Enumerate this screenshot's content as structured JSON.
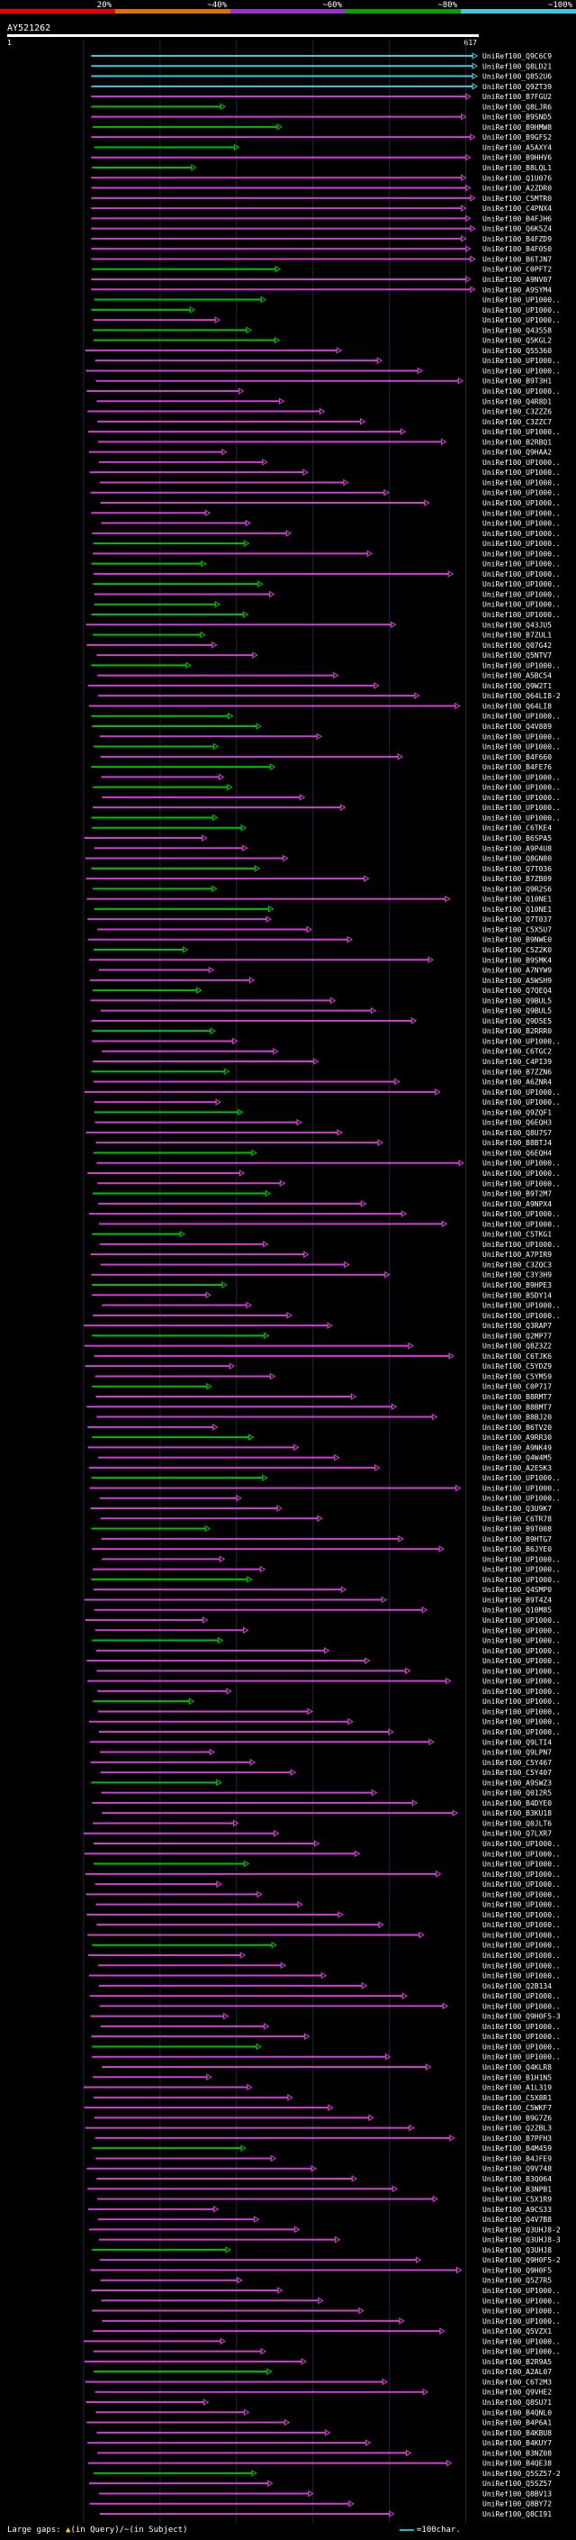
{
  "chart_data": {
    "type": "alignment-overview",
    "query_id": "AY521262",
    "query_start": "1",
    "query_end": "617",
    "query_length": 617,
    "identity_scale": [
      {
        "label": "20%",
        "color": "#e60000"
      },
      {
        "label": "~40%",
        "color": "#e07000"
      },
      {
        "label": "~60%",
        "color": "#9b30c8"
      },
      {
        "label": "~80%",
        "color": "#00a000"
      },
      {
        "label": "~100%",
        "color": "#40c8e0"
      }
    ],
    "hits": [
      "UniRef100_Q9C6C9",
      "UniRef100_Q8LD21",
      "UniRef100_Q852U6",
      "UniRef100_Q9ZT39",
      "UniRef100_B7FGU2",
      "UniRef100_Q8LJR6",
      "UniRef100_B9SND5",
      "UniRef100_B9HMW8",
      "UniRef100_B9GFS2",
      "UniRef100_A5AXY4",
      "UniRef100_B9HHV6",
      "UniRef100_B8LQL1",
      "UniRef100_Q1U076",
      "UniRef100_A2ZDR0",
      "UniRef100_C5MTR0",
      "UniRef100_C4PNX4",
      "UniRef100_B4FJH6",
      "UniRef100_Q6K5Z4",
      "UniRef100_B4FZD9",
      "UniRef100_B4F050",
      "UniRef100_B6TJN7",
      "UniRef100_C0PFT2",
      "UniRef100_A9NV07",
      "UniRef100_A9SYM4",
      "UniRef100_UP1000..",
      "UniRef100_UP1000..",
      "UniRef100_UP1000..",
      "UniRef100_Q43558",
      "UniRef100_Q5KGL2",
      "UniRef100_Q55360",
      "UniRef100_UP1000..",
      "UniRef100_UP1000..",
      "UniRef100_B9T3H1",
      "UniRef100_UP1000..",
      "UniRef100_Q4R8D1",
      "UniRef100_C3ZZZ6",
      "UniRef100_C3ZZC7",
      "UniRef100_UP1000..",
      "UniRef100_B2RBQ1",
      "UniRef100_Q9HAA2",
      "UniRef100_UP1000..",
      "UniRef100_UP1000..",
      "UniRef100_UP1000..",
      "UniRef100_UP1000..",
      "UniRef100_UP1000..",
      "UniRef100_UP1000..",
      "UniRef100_UP1000..",
      "UniRef100_UP1000..",
      "UniRef100_UP1000..",
      "UniRef100_UP1000..",
      "UniRef100_UP1000..",
      "UniRef100_UP1000..",
      "UniRef100_UP1000..",
      "UniRef100_UP1000..",
      "UniRef100_UP1000..",
      "UniRef100_UP1000..",
      "UniRef100_Q43JU5",
      "UniRef100_B7ZUL1",
      "UniRef100_Q07G42",
      "UniRef100_Q5NTV7",
      "UniRef100_UP1000..",
      "UniRef100_A5BC54",
      "UniRef100_Q9W2T1",
      "UniRef100_Q64LI8-2",
      "UniRef100_Q64LI8",
      "UniRef100_UP1000..",
      "UniRef100_Q4V889",
      "UniRef100_UP1000..",
      "UniRef100_UP1000..",
      "UniRef100_B4F660",
      "UniRef100_B4FE76",
      "UniRef100_UP1000..",
      "UniRef100_UP1000..",
      "UniRef100_UP1000..",
      "UniRef100_UP1000..",
      "UniRef100_UP1000..",
      "UniRef100_C6TKE4",
      "UniRef100_B6SPA5",
      "UniRef100_A9P4U8",
      "UniRef100_Q8GN80",
      "UniRef100_Q7T036",
      "UniRef100_B7ZB09",
      "UniRef100_Q9R2S6",
      "UniRef100_Q10NE1",
      "UniRef100_Q10NE1",
      "UniRef100_Q7T037",
      "UniRef100_C5X5U7",
      "UniRef100_B9NWE0",
      "UniRef100_C5Z2K0",
      "UniRef100_B9SMK4",
      "UniRef100_A7NYW9",
      "UniRef100_A5WSH9",
      "UniRef100_Q7QEQ4",
      "UniRef100_Q9BUL5",
      "UniRef100_Q9BUL5",
      "UniRef100_Q9D5E5",
      "UniRef100_B2RRR0",
      "UniRef100_UP1000..",
      "UniRef100_C6TGC2",
      "UniRef100_C4PI39",
      "UniRef100_B7ZZN6",
      "UniRef100_A6ZNR4",
      "UniRef100_UP1000..",
      "UniRef100_UP1000..",
      "UniRef100_Q9ZQF1",
      "UniRef100_Q6EQH3",
      "UniRef100_Q8U7S7",
      "UniRef100_B8BTJ4",
      "UniRef100_Q6EQH4",
      "UniRef100_UP1000..",
      "UniRef100_UP1000..",
      "UniRef100_UP1000..",
      "UniRef100_B9T2M7",
      "UniRef100_A9NPX4",
      "UniRef100_UP1000..",
      "UniRef100_UP1000..",
      "UniRef100_C5TKG1",
      "UniRef100_UP1000..",
      "UniRef100_A7PIR9",
      "UniRef100_C3ZQC3",
      "UniRef100_C3Y3H9",
      "UniRef100_B9HPE3",
      "UniRef100_B5DY14",
      "UniRef100_UP1000..",
      "UniRef100_UP1000..",
      "UniRef100_Q3RAP7",
      "UniRef100_Q2MP77",
      "UniRef100_Q8Z3Z2",
      "UniRef100_C6TJK6",
      "UniRef100_C5YDZ9",
      "UniRef100_C5YM59",
      "UniRef100_C0P717",
      "UniRef100_B8RMT7",
      "UniRef100_B8BMT7",
      "UniRef100_B8BJ20",
      "UniRef100_B6TV20",
      "UniRef100_A9RR30",
      "UniRef100_A9NK49",
      "UniRef100_Q4W4M5",
      "UniRef100_A2E5K3",
      "UniRef100_UP1000..",
      "UniRef100_UP1000..",
      "UniRef100_UP1000..",
      "UniRef100_Q3U9K7",
      "UniRef100_C6TR78",
      "UniRef100_B9T008",
      "UniRef100_B9HTG7",
      "UniRef100_B6JYE0",
      "UniRef100_UP1000..",
      "UniRef100_UP1000..",
      "UniRef100_UP1000..",
      "UniRef100_Q4SMP0",
      "UniRef100_B9T4Z4",
      "UniRef100_Q10M85",
      "UniRef100_UP1000..",
      "UniRef100_UP1000..",
      "UniRef100_UP1000..",
      "UniRef100_UP1000..",
      "UniRef100_UP1000..",
      "UniRef100_UP1000..",
      "UniRef100_UP1000..",
      "UniRef100_UP1000..",
      "UniRef100_UP1000..",
      "UniRef100_UP1000..",
      "UniRef100_UP1000..",
      "UniRef100_UP1000..",
      "UniRef100_Q9LTI4",
      "UniRef100_Q9LPN7",
      "UniRef100_C5Y467",
      "UniRef100_C5Y407",
      "UniRef100_A9SWZ3",
      "UniRef100_Q012R5",
      "UniRef100_B4DYE0",
      "UniRef100_B3KU18",
      "UniRef100_Q0JLT6",
      "UniRef100_Q7LXR7",
      "UniRef100_UP1000..",
      "UniRef100_UP1000..",
      "UniRef100_UP1000..",
      "UniRef100_UP1000..",
      "UniRef100_UP1000..",
      "UniRef100_UP1000..",
      "UniRef100_UP1000..",
      "UniRef100_UP1000..",
      "UniRef100_UP1000..",
      "UniRef100_UP1000..",
      "UniRef100_UP1000..",
      "UniRef100_UP1000..",
      "UniRef100_UP1000..",
      "UniRef100_UP1000..",
      "UniRef100_Q2B134",
      "UniRef100_UP1000..",
      "UniRef100_UP1000..",
      "UniRef100_Q9H0F5-3",
      "UniRef100_UP1000..",
      "UniRef100_UP1000..",
      "UniRef100_UP1000..",
      "UniRef100_UP1000..",
      "UniRef100_Q4KLR8",
      "UniRef100_B1H1N5",
      "UniRef100_A1L319",
      "UniRef100_C5X8R1",
      "UniRef100_C5WKF7",
      "UniRef100_B9G7Z6",
      "UniRef100_Q2ZBL3",
      "UniRef100_B7PFH3",
      "UniRef100_B4M459",
      "UniRef100_B4JFE9",
      "UniRef100_Q9V748",
      "UniRef100_B3Q064",
      "UniRef100_B3NPB1",
      "UniRef100_C5X1R9",
      "UniRef100_A9CS33",
      "UniRef100_Q4V7B8",
      "UniRef100_Q3UHJ8-2",
      "UniRef100_Q3UHJ8-3",
      "UniRef100_Q3UHJ8",
      "UniRef100_Q9H0F5-2",
      "UniRef100_Q9H0F5",
      "UniRef100_Q5Z7R5",
      "UniRef100_UP1000..",
      "UniRef100_UP1000..",
      "UniRef100_UP1000..",
      "UniRef100_UP1000..",
      "UniRef100_Q5VZX1",
      "UniRef100_UP1000..",
      "UniRef100_UP1000..",
      "UniRef100_B2R9A5",
      "UniRef100_A2AL07",
      "UniRef100_C6T2M3",
      "UniRef100_Q9VHE2",
      "UniRef100_Q8SU71",
      "UniRef100_B4QNL0",
      "UniRef100_B4P6A1",
      "UniRef100_B4KBU8",
      "UniRef100_B4KUY7",
      "UniRef100_B3NZ08",
      "UniRef100_B4QE38",
      "UniRef100_Q5SZ57-2",
      "UniRef100_Q5SZ57",
      "UniRef100_Q8BV13",
      "UniRef100_Q8BY72",
      "UniRef100_Q8CI91"
    ],
    "footer": {
      "gaps_label": "Large gaps:",
      "gaps_query": "(in Query)/~",
      "gaps_subject": "(in Subject)",
      "legend_label": "=100char."
    }
  }
}
